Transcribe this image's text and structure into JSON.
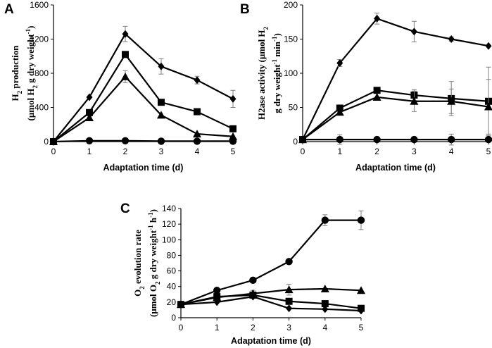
{
  "figure": {
    "panels": [
      "A",
      "B",
      "C"
    ],
    "colors": {
      "ink": "#000000",
      "errorbar": "#7f7f7f",
      "background": "#ffffff"
    }
  },
  "chart_data": [
    {
      "panel": "A",
      "type": "line",
      "title": "",
      "xlabel": "Adaptation time (d)",
      "ylabel_line1": "H2 production",
      "ylabel_line2": "(μmol H2 g  dry weight-1)",
      "xlim": [
        0,
        5
      ],
      "ylim": [
        0,
        1600
      ],
      "x": [
        0,
        1,
        2,
        3,
        4,
        5
      ],
      "x_ticks": [
        "0",
        "1",
        "2",
        "3",
        "4",
        "5"
      ],
      "y_ticks": [
        0,
        400,
        800,
        1200,
        1600
      ],
      "series": [
        {
          "name": "diamond",
          "marker": "diamond",
          "values": [
            0,
            520,
            1260,
            880,
            720,
            500
          ],
          "errors": [
            0,
            0,
            90,
            90,
            45,
            100
          ]
        },
        {
          "name": "square",
          "marker": "square",
          "values": [
            0,
            340,
            1020,
            460,
            350,
            150
          ],
          "errors": [
            0,
            0,
            0,
            0,
            0,
            0
          ]
        },
        {
          "name": "triangle",
          "marker": "triangle",
          "values": [
            0,
            280,
            760,
            310,
            90,
            60
          ],
          "errors": [
            0,
            0,
            70,
            0,
            0,
            0
          ]
        },
        {
          "name": "circle",
          "marker": "circle",
          "values": [
            0,
            10,
            10,
            5,
            5,
            5
          ],
          "errors": [
            0,
            0,
            0,
            0,
            0,
            0
          ]
        }
      ]
    },
    {
      "panel": "B",
      "type": "line",
      "title": "",
      "xlabel": "Adaptation time (d)",
      "ylabel_line1": "H2ase activity (μmol H2",
      "ylabel_line2": "g dry weight-1 min-1)",
      "xlim": [
        0,
        5
      ],
      "ylim": [
        0,
        200
      ],
      "x": [
        0,
        1,
        2,
        3,
        4,
        5
      ],
      "x_ticks": [
        "0",
        "1",
        "2",
        "3",
        "4",
        "5"
      ],
      "y_ticks": [
        0,
        50,
        100,
        150,
        200
      ],
      "series": [
        {
          "name": "diamond",
          "marker": "diamond",
          "values": [
            3,
            115,
            180,
            161,
            150,
            140
          ],
          "errors": [
            0,
            5,
            8,
            15,
            3,
            0
          ]
        },
        {
          "name": "square",
          "marker": "square",
          "values": [
            3,
            49,
            75,
            68,
            63,
            59
          ],
          "errors": [
            0,
            3,
            4,
            8,
            25,
            50
          ]
        },
        {
          "name": "triangle",
          "marker": "triangle",
          "values": [
            3,
            43,
            65,
            59,
            59,
            51
          ],
          "errors": [
            0,
            0,
            0,
            15,
            18,
            40
          ]
        },
        {
          "name": "circle",
          "marker": "circle",
          "values": [
            3,
            3,
            3,
            3,
            3,
            3
          ],
          "errors": [
            0,
            7,
            0,
            0,
            8,
            0
          ]
        }
      ]
    },
    {
      "panel": "C",
      "type": "line",
      "title": "",
      "xlabel": "Adaptation time (d)",
      "ylabel_line1": "O2 evolution rate",
      "ylabel_line2": "(μmol O2 g dry weight-1 h-1)",
      "xlim": [
        0,
        5
      ],
      "ylim": [
        0,
        140
      ],
      "x": [
        0,
        1,
        2,
        3,
        4,
        5
      ],
      "x_ticks": [
        "0",
        "1",
        "2",
        "3",
        "4",
        "5"
      ],
      "y_ticks": [
        0,
        20,
        40,
        60,
        80,
        100,
        120,
        140
      ],
      "series": [
        {
          "name": "circle",
          "marker": "circle",
          "values": [
            17,
            35,
            48,
            72,
            125,
            125
          ],
          "errors": [
            0,
            0,
            0,
            0,
            7,
            12
          ]
        },
        {
          "name": "triangle",
          "marker": "triangle",
          "values": [
            17,
            26,
            31,
            36,
            37,
            35
          ],
          "errors": [
            0,
            0,
            4,
            7,
            0,
            0
          ]
        },
        {
          "name": "square",
          "marker": "square",
          "values": [
            17,
            27,
            29,
            21,
            18,
            12
          ],
          "errors": [
            0,
            0,
            4,
            3,
            0,
            0
          ]
        },
        {
          "name": "diamond",
          "marker": "diamond",
          "values": [
            17,
            20,
            27,
            12,
            11,
            9
          ],
          "errors": [
            0,
            0,
            0,
            0,
            0,
            0
          ]
        }
      ]
    }
  ]
}
